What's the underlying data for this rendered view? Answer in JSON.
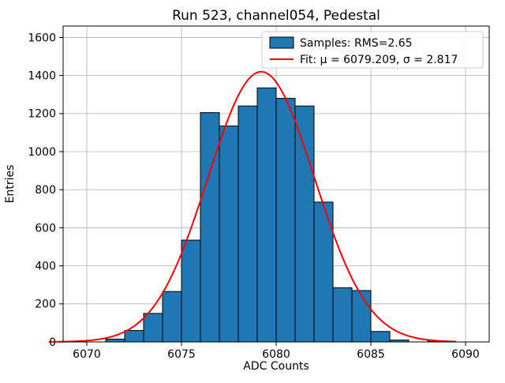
{
  "chart_data": {
    "type": "bar",
    "subtype": "histogram",
    "title": "Run 523, channel054, Pedestal",
    "xlabel": "ADC Counts",
    "ylabel": "Entries",
    "xlim": [
      6068.75,
      6091.25
    ],
    "ylim": [
      0,
      1660
    ],
    "xticks": [
      6070,
      6075,
      6080,
      6085,
      6090
    ],
    "yticks": [
      0,
      200,
      400,
      600,
      800,
      1000,
      1200,
      1400,
      1600
    ],
    "grid": true,
    "legend_position": "upper right",
    "bar_color": "#1f77b4",
    "bar_edge_color": "#000000",
    "fit_color": "#ff0000",
    "grid_color": "#b0b0b0",
    "bin_start": 6071,
    "bin_width": 1,
    "bin_counts": [
      15,
      60,
      150,
      265,
      535,
      1205,
      1135,
      1240,
      1335,
      1280,
      1240,
      735,
      285,
      270,
      55,
      10,
      0,
      5
    ],
    "rms": 2.65,
    "fit": {
      "mu": 6079.209,
      "sigma": 2.817,
      "amplitude": 1420,
      "x_range": [
        6068.0,
        6089.5
      ]
    },
    "legend": {
      "samples_label": "Samples: RMS=2.65",
      "fit_label": "Fit: μ = 6079.209, σ = 2.817"
    }
  }
}
